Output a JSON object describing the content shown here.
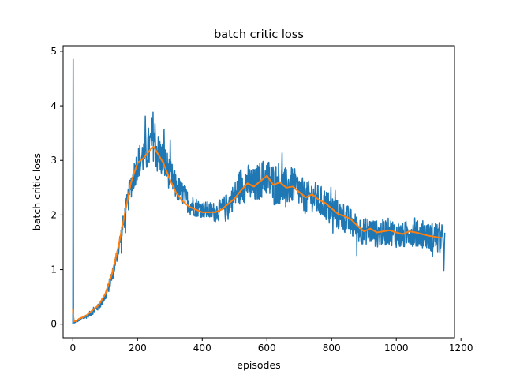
{
  "chart_data": {
    "type": "line",
    "title": "batch critic loss",
    "xlabel": "episodes",
    "ylabel": "batch critic loss",
    "xlim": [
      -30,
      1180
    ],
    "ylim": [
      -0.25,
      5.1
    ],
    "xticks": [
      0,
      200,
      400,
      600,
      800,
      1000,
      1200
    ],
    "xtick_labels": [
      "0",
      "200",
      "400",
      "600",
      "800",
      "1000",
      "1200"
    ],
    "yticks": [
      0,
      1,
      2,
      3,
      4,
      5
    ],
    "ytick_labels": [
      "0",
      "1",
      "2",
      "3",
      "4",
      "5"
    ],
    "grid": false,
    "legend": "none",
    "series": [
      {
        "color": "#1f77b4",
        "style": "raw-noisy",
        "x": [
          0,
          1,
          2,
          3,
          4,
          10,
          20,
          40,
          60,
          80,
          100,
          120,
          140,
          160,
          180,
          200,
          220,
          240,
          250,
          260,
          280,
          300,
          320,
          340,
          360,
          380,
          400,
          420,
          440,
          460,
          480,
          500,
          520,
          540,
          560,
          580,
          600,
          620,
          640,
          660,
          680,
          700,
          720,
          740,
          760,
          780,
          800,
          820,
          840,
          860,
          880,
          900,
          920,
          940,
          960,
          980,
          1000,
          1020,
          1040,
          1060,
          1080,
          1100,
          1120,
          1140,
          1150
        ],
        "y": [
          0.0,
          4.85,
          0.05,
          0.1,
          0.02,
          0.05,
          0.08,
          0.14,
          0.22,
          0.32,
          0.5,
          0.85,
          1.35,
          1.95,
          2.55,
          2.95,
          3.1,
          3.25,
          3.5,
          3.15,
          3.0,
          2.75,
          2.5,
          2.4,
          2.2,
          2.15,
          2.1,
          2.08,
          2.05,
          2.1,
          2.2,
          2.35,
          2.55,
          2.6,
          2.5,
          2.65,
          2.7,
          2.55,
          2.6,
          2.5,
          2.55,
          2.45,
          2.3,
          2.35,
          2.25,
          2.2,
          2.1,
          2.0,
          1.95,
          1.85,
          1.75,
          1.7,
          1.72,
          1.65,
          1.68,
          1.7,
          1.65,
          1.6,
          1.7,
          1.65,
          1.65,
          1.6,
          1.6,
          1.55,
          1.45
        ],
        "noise": [
          0,
          0,
          0,
          0,
          0,
          0.02,
          0.03,
          0.04,
          0.05,
          0.06,
          0.08,
          0.12,
          0.15,
          0.2,
          0.25,
          0.3,
          0.35,
          0.45,
          0.5,
          0.4,
          0.35,
          0.3,
          0.25,
          0.22,
          0.2,
          0.18,
          0.15,
          0.17,
          0.18,
          0.2,
          0.22,
          0.25,
          0.35,
          0.35,
          0.35,
          0.35,
          0.35,
          0.4,
          0.4,
          0.35,
          0.33,
          0.32,
          0.3,
          0.3,
          0.3,
          0.3,
          0.28,
          0.28,
          0.28,
          0.28,
          0.25,
          0.25,
          0.25,
          0.25,
          0.25,
          0.25,
          0.25,
          0.25,
          0.25,
          0.25,
          0.25,
          0.25,
          0.3,
          0.3,
          0.3
        ]
      },
      {
        "color": "#ff7f0e",
        "style": "smoothed",
        "x": [
          0,
          3,
          10,
          20,
          40,
          60,
          80,
          100,
          120,
          140,
          160,
          180,
          200,
          220,
          240,
          250,
          260,
          280,
          300,
          320,
          340,
          360,
          380,
          400,
          420,
          440,
          460,
          480,
          500,
          520,
          540,
          560,
          580,
          600,
          620,
          640,
          660,
          680,
          700,
          720,
          740,
          760,
          780,
          800,
          820,
          840,
          860,
          880,
          900,
          920,
          940,
          960,
          980,
          1000,
          1020,
          1040,
          1060,
          1080,
          1100,
          1120,
          1140
        ],
        "y": [
          0.28,
          0.05,
          0.06,
          0.1,
          0.15,
          0.25,
          0.35,
          0.55,
          0.9,
          1.4,
          2.0,
          2.6,
          2.95,
          3.05,
          3.2,
          3.25,
          3.15,
          2.95,
          2.65,
          2.4,
          2.25,
          2.15,
          2.1,
          2.05,
          2.05,
          2.05,
          2.1,
          2.2,
          2.3,
          2.45,
          2.58,
          2.52,
          2.62,
          2.72,
          2.55,
          2.6,
          2.5,
          2.52,
          2.42,
          2.32,
          2.38,
          2.28,
          2.22,
          2.12,
          2.02,
          1.98,
          1.92,
          1.8,
          1.7,
          1.75,
          1.68,
          1.7,
          1.72,
          1.68,
          1.65,
          1.7,
          1.68,
          1.65,
          1.62,
          1.6,
          1.58
        ]
      }
    ]
  }
}
